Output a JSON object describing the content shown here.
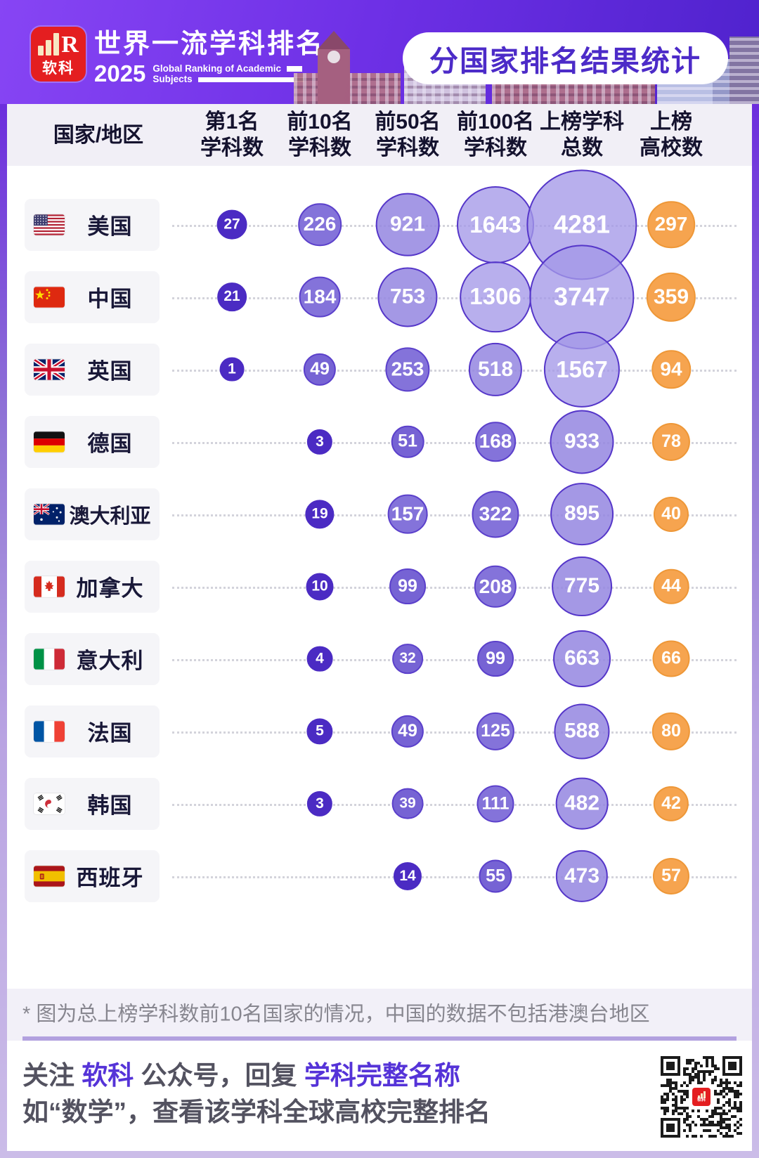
{
  "header": {
    "logo_cn": "软科",
    "logo_r": "R",
    "title_cn": "世界一流学科排名",
    "year": "2025",
    "title_en_line1": "Global Ranking of Academic",
    "title_en_line2": "Subjects",
    "badge": "分国家排名结果统计"
  },
  "table_header": {
    "country_col": "国家/地区",
    "columns": [
      {
        "line1": "第1名",
        "line2": "学科数"
      },
      {
        "line1": "前10名",
        "line2": "学科数"
      },
      {
        "line1": "前50名",
        "line2": "学科数"
      },
      {
        "line1": "前100名",
        "line2": "学科数"
      },
      {
        "line1": "上榜学科",
        "line2": "总数"
      },
      {
        "line1": "上榜",
        "line2": "高校数"
      }
    ]
  },
  "chart_data": {
    "type": "bubble-table",
    "title": "分国家排名结果统计",
    "columns": [
      "第1名学科数",
      "前10名学科数",
      "前50名学科数",
      "前100名学科数",
      "上榜学科总数",
      "上榜高校数"
    ],
    "rows": [
      {
        "country": "美国",
        "flag": "us",
        "values": [
          27,
          226,
          921,
          1643,
          4281,
          297
        ]
      },
      {
        "country": "中国",
        "flag": "cn",
        "values": [
          21,
          184,
          753,
          1306,
          3747,
          359
        ]
      },
      {
        "country": "英国",
        "flag": "gb",
        "values": [
          1,
          49,
          253,
          518,
          1567,
          94
        ]
      },
      {
        "country": "德国",
        "flag": "de",
        "values": [
          null,
          3,
          51,
          168,
          933,
          78
        ]
      },
      {
        "country": "澳大利亚",
        "flag": "au",
        "values": [
          null,
          19,
          157,
          322,
          895,
          40
        ]
      },
      {
        "country": "加拿大",
        "flag": "ca",
        "values": [
          null,
          10,
          99,
          208,
          775,
          44
        ]
      },
      {
        "country": "意大利",
        "flag": "it",
        "values": [
          null,
          4,
          32,
          99,
          663,
          66
        ]
      },
      {
        "country": "法国",
        "flag": "fr",
        "values": [
          null,
          5,
          49,
          125,
          588,
          80
        ]
      },
      {
        "country": "韩国",
        "flag": "kr",
        "values": [
          null,
          3,
          39,
          111,
          482,
          42
        ]
      },
      {
        "country": "西班牙",
        "flag": "es",
        "values": [
          null,
          null,
          14,
          55,
          473,
          57
        ]
      }
    ],
    "legend_position": "none",
    "grid": "dotted-row-guides"
  },
  "footnote": "* 图为总上榜学科数前10名国家的情况，中国的数据不包括港澳台地区",
  "cta": {
    "line1_parts": [
      {
        "text": "关注 ",
        "accent": false
      },
      {
        "text": "软科",
        "accent": true
      },
      {
        "text": " 公众号，回复 ",
        "accent": false
      },
      {
        "text": "学科完整名称",
        "accent": true
      }
    ],
    "line2": "如“数学”，查看该学科全球高校完整排名"
  },
  "colors": {
    "header_gradient_start": "#8745f4",
    "header_gradient_end": "#4f22cd",
    "badge_text": "#4c2bc8",
    "bubble_dark": "#4b2bc3",
    "bubble_medium": "#7663d4",
    "bubble_light": "#a094e3",
    "bubble_border": "#5536c9",
    "bubble_orange": "#f6a44f",
    "bubble_orange_border": "#ee9737",
    "accent_purple": "#5533d8",
    "logo_red": "#e41e20"
  }
}
